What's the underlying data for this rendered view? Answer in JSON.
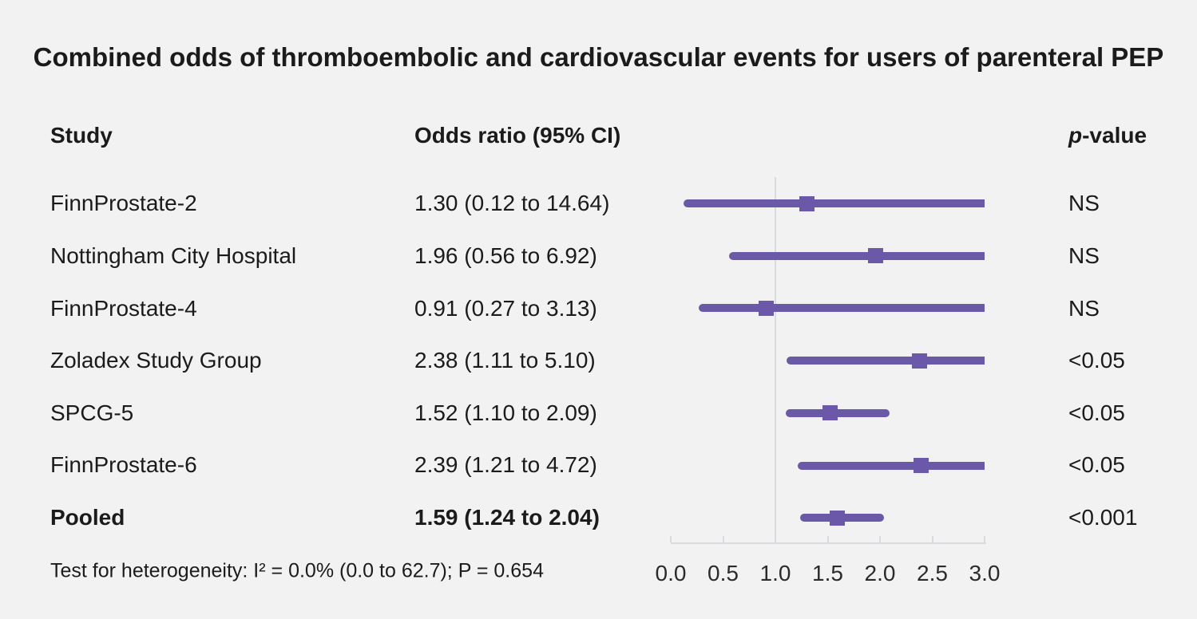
{
  "chart_data": {
    "type": "forest",
    "title": "Combined odds of thromboembolic and cardiovascular events for users of parenteral PEP",
    "columns": {
      "study": "Study",
      "odds_ratio": "Odds ratio (95% CI)",
      "p_italic": "p",
      "p_rest": "-value"
    },
    "rows": [
      {
        "study": "FinnProstate-2",
        "or_label": "1.30 (0.12 to 14.64)",
        "or": 1.3,
        "ci_low": 0.12,
        "ci_high": 14.64,
        "p": "NS",
        "bold": false
      },
      {
        "study": "Nottingham City Hospital",
        "or_label": "1.96 (0.56 to 6.92)",
        "or": 1.96,
        "ci_low": 0.56,
        "ci_high": 6.92,
        "p": "NS",
        "bold": false
      },
      {
        "study": "FinnProstate-4",
        "or_label": "0.91 (0.27 to 3.13)",
        "or": 0.91,
        "ci_low": 0.27,
        "ci_high": 3.13,
        "p": "NS",
        "bold": false
      },
      {
        "study": "Zoladex Study Group",
        "or_label": "2.38 (1.11 to 5.10)",
        "or": 2.38,
        "ci_low": 1.11,
        "ci_high": 5.1,
        "p": "<0.05",
        "bold": false
      },
      {
        "study": "SPCG-5",
        "or_label": "1.52 (1.10 to 2.09)",
        "or": 1.52,
        "ci_low": 1.1,
        "ci_high": 2.09,
        "p": "<0.05",
        "bold": false
      },
      {
        "study": "FinnProstate-6",
        "or_label": "2.39 (1.21 to 4.72)",
        "or": 2.39,
        "ci_low": 1.21,
        "ci_high": 4.72,
        "p": "<0.05",
        "bold": false
      },
      {
        "study": "Pooled",
        "or_label": "1.59 (1.24 to 2.04)",
        "or": 1.59,
        "ci_low": 1.24,
        "ci_high": 2.04,
        "p": "<0.001",
        "bold": true
      }
    ],
    "footnote": "Test for heterogeneity: I² = 0.0% (0.0 to 62.7); P = 0.654",
    "axis": {
      "xmin": 0.0,
      "xmax": 3.0,
      "reference_line": 1.0,
      "tick_labels": [
        "0.0",
        "0.5",
        "1.0",
        "1.5",
        "2.0",
        "2.5",
        "3.0"
      ],
      "ticks": [
        0.0,
        0.5,
        1.0,
        1.5,
        2.0,
        2.5,
        3.0
      ]
    },
    "colors": {
      "background": "#f2f2f2",
      "ci_line": "#6a59a6",
      "marker": "#6c58a9",
      "axis": "#d8dce0",
      "text": "#1b1b1b"
    },
    "legend": "none",
    "grid": "off"
  }
}
